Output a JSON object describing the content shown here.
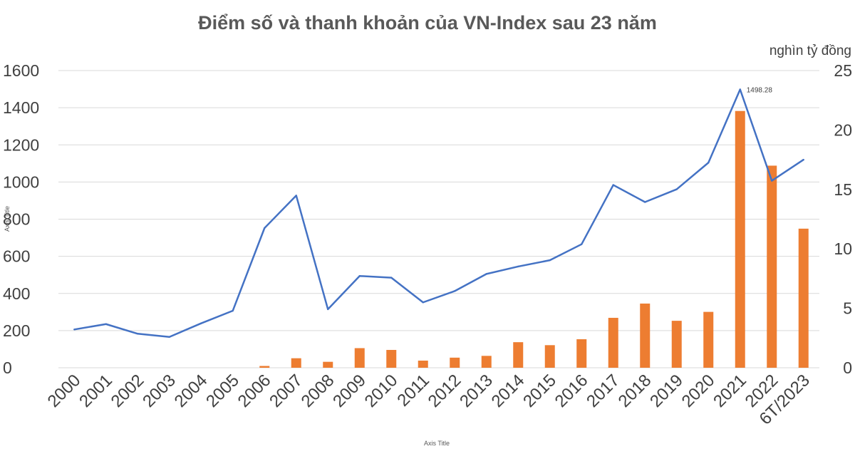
{
  "chart_data": {
    "type": "bar+line",
    "title": "Điểm số và thanh khoản của VN-Index sau 23 năm",
    "xlabel": "Axis Title",
    "ylabel": "Axis Title",
    "y2label": "nghìn tỷ đồng",
    "ylim": [
      0,
      1600
    ],
    "y2lim": [
      0,
      25
    ],
    "yticks": [
      "0",
      "200",
      "400",
      "600",
      "800",
      "1000",
      "1200",
      "1400",
      "1600"
    ],
    "y2ticks": [
      "0",
      "5",
      "10",
      "15",
      "20",
      "25"
    ],
    "grid": true,
    "categories": [
      "2000",
      "2001",
      "2002",
      "2003",
      "2004",
      "2005",
      "2006",
      "2007",
      "2008",
      "2009",
      "2010",
      "2011",
      "2012",
      "2013",
      "2014",
      "2015",
      "2016",
      "2017",
      "2018",
      "2019",
      "2020",
      "2021",
      "2022",
      "6T/2023"
    ],
    "series": [
      {
        "type": "line",
        "axis": "left",
        "color": "#4472c4",
        "values": [
          206,
          235,
          183,
          166,
          239,
          307,
          752,
          927,
          315,
          494,
          485,
          352,
          413,
          505,
          545,
          579,
          665,
          984,
          892,
          961,
          1104,
          1498.28,
          1007,
          1120
        ]
      },
      {
        "type": "bar",
        "axis": "right",
        "color": "#ed7d31",
        "values": [
          0,
          0,
          0,
          0,
          0,
          0,
          0.15,
          0.8,
          0.5,
          1.65,
          1.5,
          0.6,
          0.85,
          1.0,
          2.15,
          1.9,
          2.4,
          4.2,
          5.4,
          3.95,
          4.7,
          21.6,
          17.0,
          11.7
        ]
      }
    ],
    "annotations": [
      {
        "category": "2021",
        "text": "1498.28"
      }
    ]
  }
}
